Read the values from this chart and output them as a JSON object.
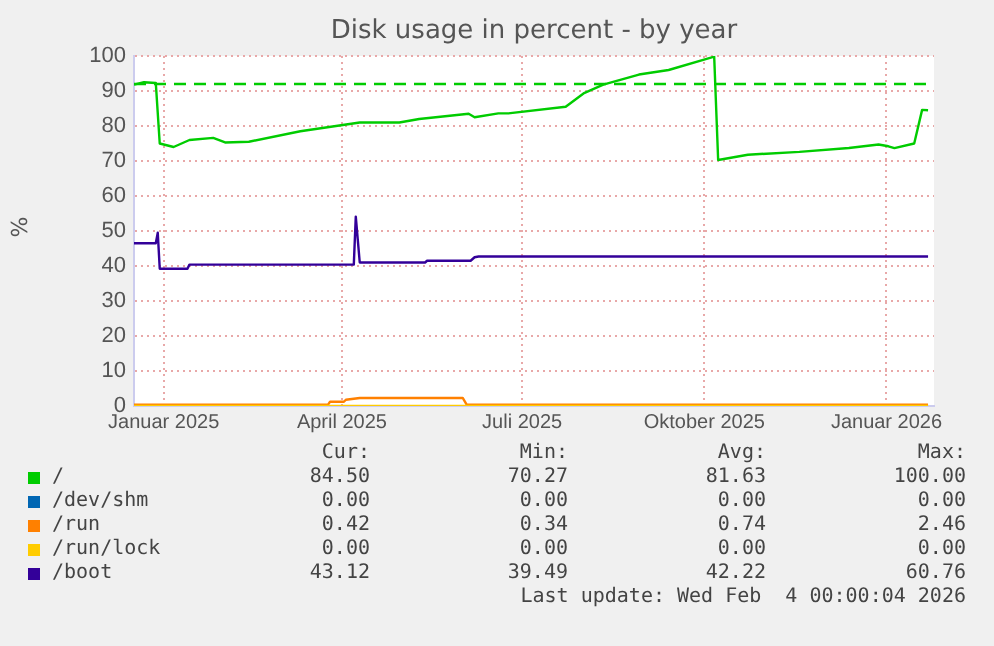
{
  "chart_data": {
    "type": "line",
    "title": "Disk usage in percent - by year",
    "ylabel": "%",
    "marker": "none",
    "grid": true,
    "legend": "bottom",
    "xlim": [
      "2024-12-17",
      "2026-01-25"
    ],
    "xticks": [
      {
        "value": "2025-01-01",
        "label": "Januar 2025"
      },
      {
        "value": "2025-04-01",
        "label": "April 2025"
      },
      {
        "value": "2025-07-01",
        "label": "Juli 2025"
      },
      {
        "value": "2025-10-01",
        "label": "Oktober 2025"
      },
      {
        "value": "2026-01-01",
        "label": "Januar 2026"
      }
    ],
    "ylim": [
      0,
      100
    ],
    "yticks": [
      0,
      10,
      20,
      30,
      40,
      50,
      60,
      70,
      80,
      90,
      100
    ],
    "ref_lines": [
      {
        "axis": "y",
        "value": 92,
        "color": "#00cc00",
        "line_style": "dashed"
      }
    ],
    "series": [
      {
        "name": "/",
        "color": "#00cc00",
        "x": [
          "2024-12-17",
          "2024-12-22",
          "2024-12-28",
          "2024-12-30",
          "2025-01-06",
          "2025-01-14",
          "2025-01-26",
          "2025-02-01",
          "2025-02-13",
          "2025-03-11",
          "2025-04-10",
          "2025-04-30",
          "2025-05-10",
          "2025-06-04",
          "2025-06-07",
          "2025-06-19",
          "2025-06-24",
          "2025-07-23",
          "2025-08-01",
          "2025-08-11",
          "2025-08-29",
          "2025-09-13",
          "2025-10-06",
          "2025-10-08",
          "2025-10-23",
          "2025-11-18",
          "2025-12-13",
          "2025-12-28",
          "2026-01-02",
          "2026-01-05",
          "2026-01-15",
          "2026-01-19",
          "2026-01-22"
        ],
        "values": [
          91.8,
          92.5,
          92.3,
          75,
          74,
          76,
          76.6,
          75.3,
          75.5,
          78.5,
          81,
          81,
          82,
          83.5,
          82.5,
          83.6,
          83.6,
          85.5,
          89.3,
          91.8,
          94.7,
          96,
          99.8,
          70.3,
          71.8,
          72.6,
          73.7,
          74.7,
          74.2,
          73.7,
          75,
          84.6,
          84.5
        ]
      },
      {
        "name": "/dev/shm",
        "color": "#0066b3"
      },
      {
        "name": "/run",
        "color": "#ff8000",
        "x": [
          "2024-12-17",
          "2025-03-25",
          "2025-03-26",
          "2025-04-02",
          "2025-04-03",
          "2025-04-10",
          "2025-06-01",
          "2025-06-03",
          "2026-01-22"
        ],
        "values": [
          0.4,
          0.4,
          1.2,
          1.2,
          1.8,
          2.3,
          2.3,
          0.4,
          0.4
        ]
      },
      {
        "name": "/run/lock",
        "color": "#ffcc00",
        "x": [
          "2024-12-17",
          "2026-01-22"
        ],
        "values": [
          0,
          0
        ]
      },
      {
        "name": "/boot",
        "color": "#330099",
        "x": [
          "2024-12-17",
          "2024-12-28",
          "2024-12-29",
          "2024-12-30",
          "2025-01-13",
          "2025-01-14",
          "2025-04-07",
          "2025-04-08",
          "2025-04-10",
          "2025-05-13",
          "2025-05-14",
          "2025-06-05",
          "2025-06-07",
          "2025-06-09",
          "2026-01-22"
        ],
        "values": [
          46.5,
          46.5,
          49.5,
          39.2,
          39.2,
          40.4,
          40.4,
          54.1,
          41,
          41,
          41.5,
          41.5,
          42.5,
          42.7,
          42.7
        ]
      }
    ],
    "annotations": [
      "Cur:",
      "Min:",
      "Avg:",
      "Max:",
      "84.50",
      "70.27",
      "81.63",
      "100.00",
      "0.00",
      "0.00",
      "0.00",
      "0.00",
      "0.42",
      "0.34",
      "0.74",
      "2.46",
      "0.00",
      "0.00",
      "0.00",
      "0.00",
      "43.12",
      "39.49",
      "42.22",
      "60.76",
      "Last update: Wed Feb  4 00:00:04 2026"
    ]
  }
}
